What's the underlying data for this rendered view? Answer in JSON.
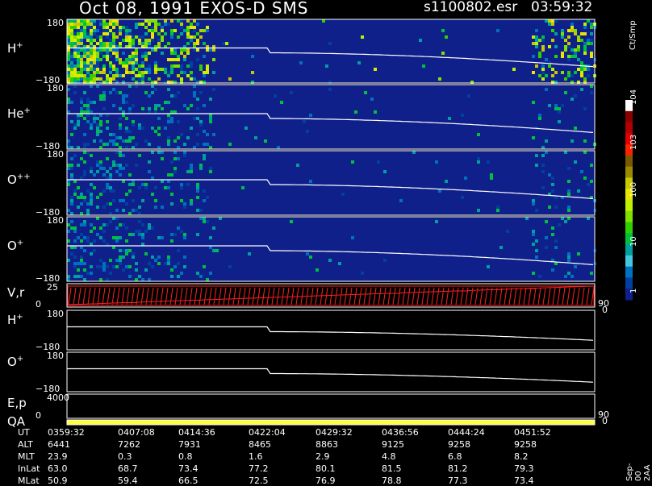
{
  "header": {
    "title": "Oct 08, 1991   EXOS-D SMS",
    "file": "s1100802.esr",
    "time": "03:59:32"
  },
  "colorbar": {
    "unit": "Ct/Smp",
    "tick_labels": [
      "10^4",
      "10^3",
      "100",
      "10",
      "1"
    ],
    "colors": [
      "#ffffff",
      "#8b0000",
      "#b00000",
      "#e00000",
      "#ff2000",
      "#7a5a00",
      "#9a8a00",
      "#c8c800",
      "#e6e600",
      "#bff000",
      "#80e000",
      "#30d000",
      "#00c040",
      "#00a0a0",
      "#40c8e0",
      "#0070c0",
      "#0040a0",
      "#10208a"
    ]
  },
  "panels": [
    {
      "id": "H+",
      "label": "H",
      "sup": "+",
      "ymax": "180",
      "ymin": "−180",
      "type": "spectrogram"
    },
    {
      "id": "He+",
      "label": "He",
      "sup": "+",
      "ymax": "180",
      "ymin": "−180",
      "type": "spectrogram"
    },
    {
      "id": "O++",
      "label": "O",
      "sup": "++",
      "ymax": "180",
      "ymin": "−180",
      "type": "spectrogram"
    },
    {
      "id": "O+",
      "label": "O",
      "sup": "+",
      "ymax": "180",
      "ymin": "−180",
      "type": "spectrogram"
    },
    {
      "id": "Vr",
      "label": "V,r",
      "ymax": "25",
      "ymin": "0",
      "right_max": "90",
      "right_min": "0",
      "type": "velocity"
    },
    {
      "id": "H+b",
      "label": "H",
      "sup": "+",
      "ymax": "180",
      "ymin": "−180",
      "type": "line"
    },
    {
      "id": "O+b",
      "label": "O",
      "sup": "+",
      "ymax": "180",
      "ymin": "−180",
      "type": "line"
    },
    {
      "id": "Ep",
      "label": "E,p",
      "ymax": "4000",
      "ymin": "0",
      "right_max": "90",
      "right_min": "0",
      "type": "line"
    },
    {
      "id": "QA",
      "label": "QA",
      "type": "bar"
    }
  ],
  "chart_data": {
    "type": "heatmap",
    "title": "Oct 08, 1991   EXOS-D SMS",
    "x_ticks": [
      "0359:32",
      "0407:08",
      "0414:36",
      "0422:04",
      "0429:32",
      "0436:56",
      "0444:24",
      "0451:52"
    ],
    "ephemeris": [
      {
        "name": "UT",
        "values": [
          "0359:32",
          "0407:08",
          "0414:36",
          "0422:04",
          "0429:32",
          "0436:56",
          "0444:24",
          "0451:52"
        ]
      },
      {
        "name": "ALT",
        "values": [
          "6441",
          "7262",
          "7931",
          "8465",
          "8863",
          "9125",
          "9258",
          "9258"
        ]
      },
      {
        "name": "MLT",
        "values": [
          "23.9",
          "0.3",
          "0.8",
          "1.6",
          "2.9",
          "4.8",
          "6.8",
          "8.2"
        ]
      },
      {
        "name": "InLat",
        "values": [
          "63.0",
          "68.7",
          "73.4",
          "77.2",
          "80.1",
          "81.5",
          "81.2",
          "79.3"
        ]
      },
      {
        "name": "MLat",
        "values": [
          "50.9",
          "59.4",
          "66.5",
          "72.5",
          "76.9",
          "78.8",
          "77.3",
          "73.4"
        ]
      }
    ],
    "pitch_trace_step_at": "0422:04",
    "colorbar_range": [
      1,
      10000
    ],
    "colorbar_scale": "log"
  },
  "footer": {
    "credit": "Sep-00  2AA"
  }
}
